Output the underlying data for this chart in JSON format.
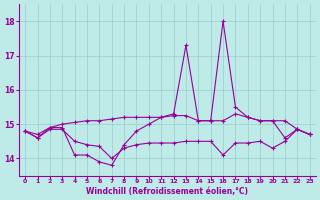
{
  "xlabel": "Windchill (Refroidissement éolien,°C)",
  "x": [
    0,
    1,
    2,
    3,
    4,
    5,
    6,
    7,
    8,
    9,
    10,
    11,
    12,
    13,
    14,
    15,
    16,
    17,
    18,
    19,
    20,
    21,
    22,
    23
  ],
  "line1": [
    14.8,
    14.6,
    14.9,
    14.9,
    14.1,
    14.1,
    13.9,
    13.8,
    14.4,
    14.8,
    15.0,
    15.2,
    15.3,
    17.3,
    15.1,
    15.1,
    18.0,
    15.5,
    15.2,
    15.1,
    15.1,
    14.6,
    14.85,
    14.7
  ],
  "line2": [
    14.8,
    14.6,
    14.85,
    14.85,
    14.5,
    14.4,
    14.35,
    14.0,
    14.3,
    14.4,
    14.45,
    14.45,
    14.45,
    14.5,
    14.5,
    14.5,
    14.1,
    14.45,
    14.45,
    14.5,
    14.3,
    14.5,
    14.85,
    14.7
  ],
  "line3": [
    14.8,
    14.7,
    14.9,
    15.0,
    15.05,
    15.1,
    15.1,
    15.15,
    15.2,
    15.2,
    15.2,
    15.2,
    15.25,
    15.25,
    15.1,
    15.1,
    15.1,
    15.3,
    15.2,
    15.1,
    15.1,
    15.1,
    14.85,
    14.7
  ],
  "ylim": [
    13.5,
    18.5
  ],
  "yticks": [
    14,
    15,
    16,
    17,
    18
  ],
  "line_color": "#990099",
  "bg_color": "#beeae8",
  "grid_color": "#99cccc",
  "marker": "+",
  "markersize": 3,
  "linewidth": 0.8
}
